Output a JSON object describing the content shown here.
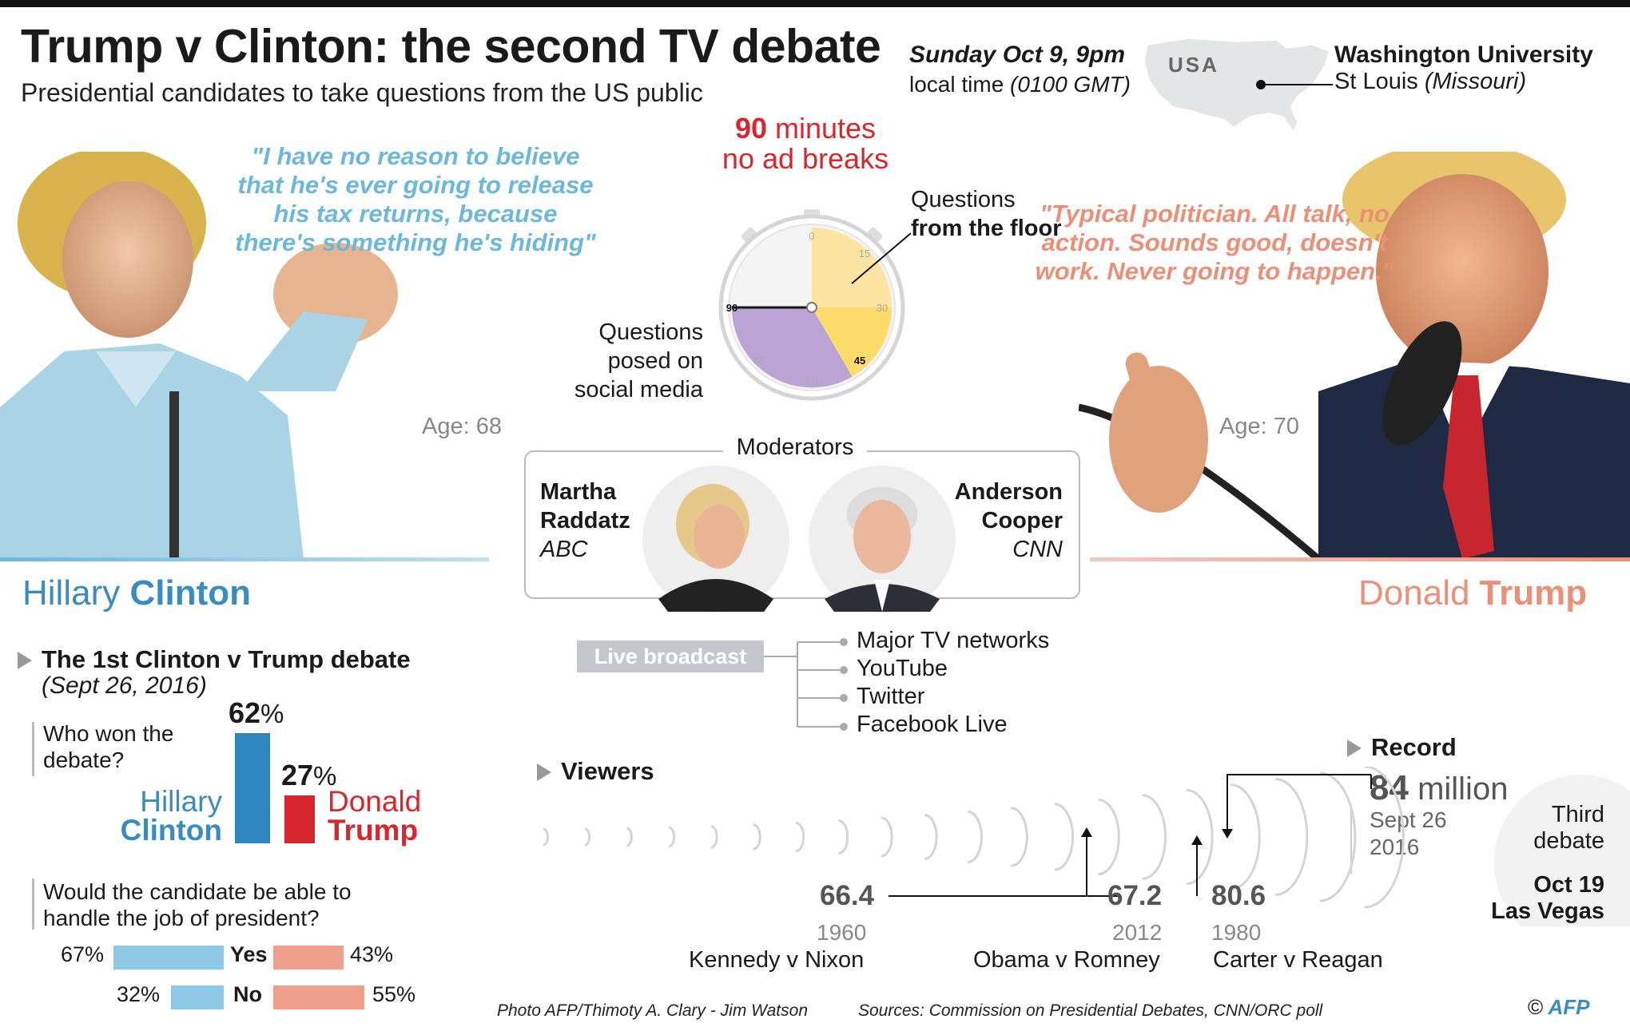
{
  "header": {
    "title": "Trump v Clinton: the second TV debate",
    "subtitle": "Presidential candidates to take questions from the US public"
  },
  "event": {
    "date_time": "Sunday Oct 9, 9pm",
    "local_time_prefix": "local time",
    "gmt": "(0100 GMT)",
    "map_label": "USA",
    "venue": "Washington University",
    "city": "St Louis",
    "state": "(Missouri)"
  },
  "clinton": {
    "quote": "\"I have no reason to believe that he's ever going to release his tax returns, because there's something he's hiding\"",
    "age": "Age: 68",
    "first_name": "Hillary",
    "last_name": "Clinton"
  },
  "trump": {
    "quote": "\"Typical politician. All talk, no action. Sounds good, doesn't work. Never going to happen.\"",
    "age": "Age: 70",
    "first_name": "Donald",
    "last_name": "Trump"
  },
  "format": {
    "duration_number": "90",
    "duration_unit": "minutes",
    "no_ads": "no ad breaks",
    "floor_label_1": "Questions",
    "floor_label_2": "from the floor",
    "social_label": "Questions posed on social media",
    "dial_ticks": [
      "0",
      "15",
      "30",
      "45",
      "60",
      "75",
      "90"
    ]
  },
  "moderators": {
    "heading": "Moderators",
    "left": {
      "first": "Martha",
      "last": "Raddatz",
      "network": "ABC"
    },
    "right": {
      "first": "Anderson",
      "last": "Cooper",
      "network": "CNN"
    }
  },
  "broadcast": {
    "label": "Live broadcast",
    "platforms": [
      "Major TV networks",
      "YouTube",
      "Twitter",
      "Facebook Live"
    ]
  },
  "first_debate": {
    "heading": "The 1st Clinton v Trump debate",
    "date": "(Sept 26, 2016)",
    "who_won_q": "Who won the debate?",
    "clinton_pct": "62",
    "trump_pct": "27",
    "pct_sign": "%",
    "clinton_label_1": "Hillary",
    "clinton_label_2": "Clinton",
    "trump_label_1": "Donald",
    "trump_label_2": "Trump",
    "job_q": "Would the candidate be able to handle the job of president?",
    "yes_label": "Yes",
    "no_label": "No",
    "clinton_yes": "67%",
    "trump_yes": "43%",
    "clinton_no": "32%",
    "trump_no": "55%",
    "colors": {
      "clinton": "#2e86bf",
      "trump": "#d8262e",
      "clinton_light": "#8ec9e8",
      "trump_light": "#f0a08a"
    }
  },
  "viewers": {
    "heading": "Viewers",
    "record_heading": "Record",
    "record_value": "84",
    "record_unit": "million",
    "record_date_1": "Sept 26",
    "record_date_2": "2016",
    "entries": [
      {
        "value": "66.4",
        "year": "1960",
        "name": "Kennedy v Nixon"
      },
      {
        "value": "67.2",
        "year": "2012",
        "name": "Obama v Romney"
      },
      {
        "value": "80.6",
        "year": "1980",
        "name": "Carter v Reagan"
      }
    ],
    "third_1": "Third",
    "third_2": "debate",
    "third_date": "Oct 19",
    "third_city": "Las Vegas"
  },
  "footer": {
    "photo_credit": "Photo AFP/Thimoty A. Clary - Jim Watson",
    "sources": "Sources: Commission on Presidential Debates, CNN/ORC poll",
    "copyright": "©",
    "agency": "AFP"
  }
}
